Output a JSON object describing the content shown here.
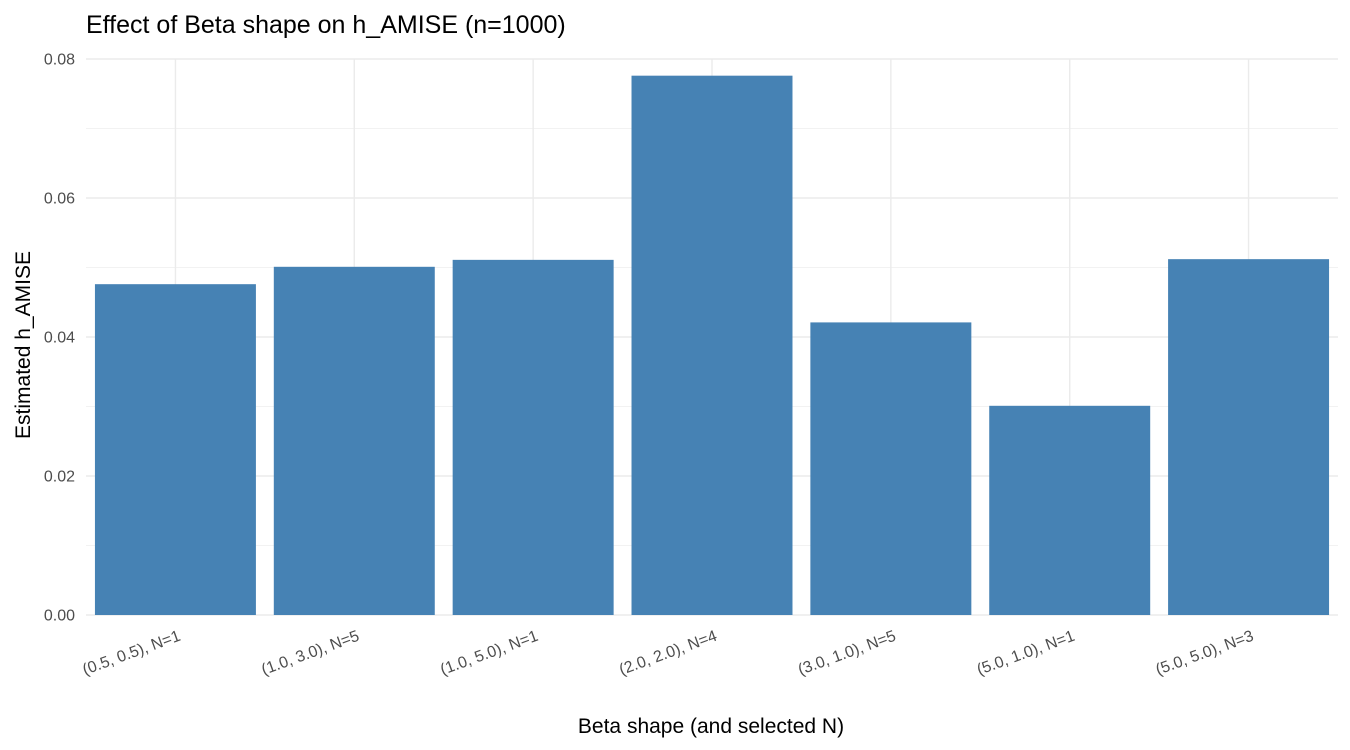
{
  "chart_data": {
    "type": "bar",
    "title": "Effect of Beta shape on h_AMISE (n=1000)",
    "xlabel": "Beta shape (and selected N)",
    "ylabel": "Estimated h_AMISE",
    "categories": [
      "(0.5, 0.5), N=1",
      "(1.0, 3.0), N=5",
      "(1.0, 5.0), N=1",
      "(2.0, 2.0), N=4",
      "(3.0, 1.0), N=5",
      "(5.0, 1.0), N=1",
      "(5.0, 5.0), N=3"
    ],
    "values": [
      0.0476,
      0.0501,
      0.0511,
      0.0776,
      0.0421,
      0.0301,
      0.0512
    ],
    "ylim": [
      0,
      0.08
    ],
    "yticks": [
      0,
      0.02,
      0.04,
      0.06,
      0.08
    ],
    "ytick_labels": [
      "0.00",
      "0.02",
      "0.04",
      "0.06",
      "0.08"
    ],
    "bar_color": "#4682b4",
    "grid": true
  }
}
